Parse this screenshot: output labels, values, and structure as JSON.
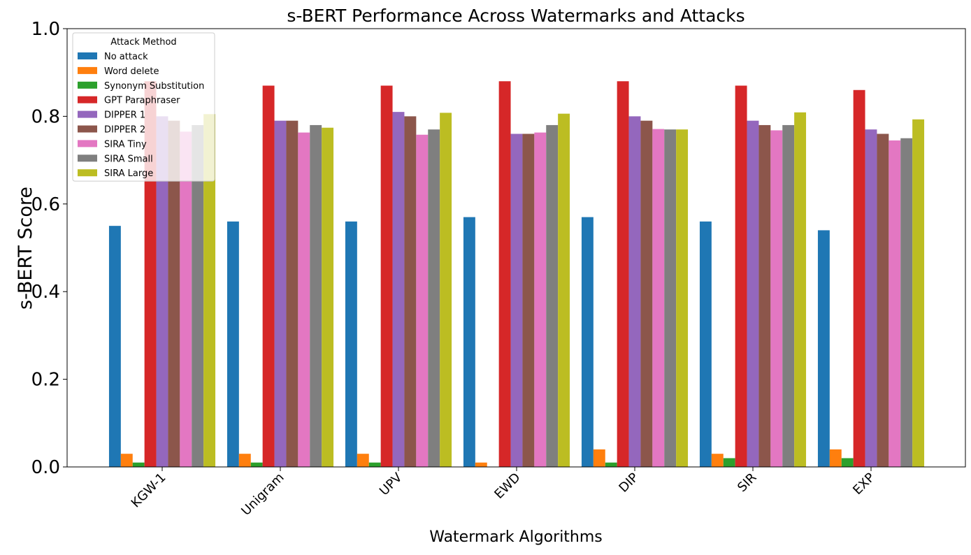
{
  "chart_data": {
    "type": "bar",
    "title": "s-BERT Performance Across Watermarks and Attacks",
    "xlabel": "Watermark Algorithms",
    "ylabel": "s-BERT Score",
    "ylim": [
      0,
      1.0
    ],
    "yticks": [
      "0.0",
      "0.2",
      "0.4",
      "0.6",
      "0.8",
      "1.0"
    ],
    "grid": false,
    "legend": {
      "title": "Attack Method",
      "placement": "top-left"
    },
    "categories": [
      "KGW-1",
      "Unigram",
      "UPV",
      "EWD",
      "DIP",
      "SIR",
      "EXP"
    ],
    "series": [
      {
        "name": "No attack",
        "color": "#1f77b4",
        "values": [
          0.55,
          0.56,
          0.56,
          0.57,
          0.57,
          0.56,
          0.54
        ]
      },
      {
        "name": "Word delete",
        "color": "#ff7f0e",
        "values": [
          0.03,
          0.03,
          0.03,
          0.01,
          0.04,
          0.03,
          0.04
        ]
      },
      {
        "name": "Synonym Substitution",
        "color": "#2ca02c",
        "values": [
          0.01,
          0.01,
          0.01,
          0.0,
          0.01,
          0.02,
          0.02
        ]
      },
      {
        "name": "GPT Paraphraser",
        "color": "#d62728",
        "values": [
          0.88,
          0.87,
          0.87,
          0.88,
          0.88,
          0.87,
          0.86
        ]
      },
      {
        "name": "DIPPER 1",
        "color": "#9467bd",
        "values": [
          0.8,
          0.79,
          0.81,
          0.76,
          0.8,
          0.79,
          0.77
        ]
      },
      {
        "name": "DIPPER 2",
        "color": "#8c564b",
        "values": [
          0.79,
          0.79,
          0.8,
          0.76,
          0.79,
          0.78,
          0.76
        ]
      },
      {
        "name": "SIRA Tiny",
        "color": "#e377c2",
        "values": [
          0.765,
          0.763,
          0.758,
          0.763,
          0.771,
          0.768,
          0.745
        ]
      },
      {
        "name": "SIRA Small",
        "color": "#7f7f7f",
        "values": [
          0.78,
          0.78,
          0.77,
          0.78,
          0.77,
          0.78,
          0.75
        ]
      },
      {
        "name": "SIRA Large",
        "color": "#bcbd22",
        "values": [
          0.805,
          0.774,
          0.808,
          0.806,
          0.77,
          0.809,
          0.793
        ]
      }
    ]
  }
}
